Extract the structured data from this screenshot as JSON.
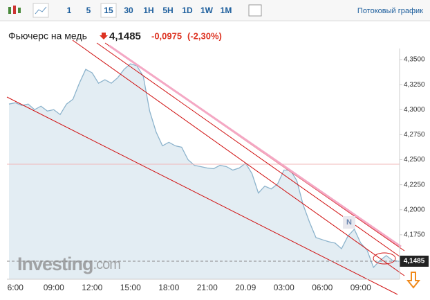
{
  "toolbar": {
    "intervals": [
      "1",
      "5",
      "15",
      "30",
      "1H",
      "5H",
      "1D",
      "1W",
      "1M"
    ],
    "active": "15",
    "streaming": "Потоковый график"
  },
  "header": {
    "title": "Фьючерс на медь",
    "price": "4,1485",
    "change": "-0,0975",
    "change_pct": "(-2,30%)"
  },
  "watermark": {
    "brand": "Investing",
    "suffix": ".com"
  },
  "marker": "N",
  "chart_data": {
    "type": "area",
    "color": "#8cb3cc",
    "fill": "#e3edf3",
    "categories": [
      null,
      "6:00",
      null,
      null,
      null,
      null,
      null,
      "09:00",
      null,
      null,
      null,
      null,
      null,
      "12:00",
      null,
      null,
      null,
      null,
      null,
      "15:00",
      null,
      null,
      null,
      null,
      null,
      "18:00",
      null,
      null,
      null,
      null,
      null,
      "21:00",
      null,
      null,
      null,
      null,
      null,
      "20.09",
      null,
      null,
      null,
      null,
      null,
      "03:00",
      null,
      null,
      null,
      null,
      null,
      "06:00",
      null,
      null,
      null,
      null,
      null,
      "09:00",
      null,
      null,
      null,
      null,
      null,
      null
    ],
    "values": [
      4.3056,
      4.3069,
      4.3042,
      4.3056,
      4.3,
      4.3035,
      4.2986,
      4.3,
      4.2951,
      4.3056,
      4.3104,
      4.3264,
      4.3403,
      4.3368,
      4.3264,
      4.3299,
      4.3264,
      4.3319,
      4.3403,
      4.3458,
      4.3438,
      4.3333,
      4.2986,
      4.2778,
      4.2639,
      4.2674,
      4.2639,
      4.2625,
      4.25,
      4.2444,
      4.2431,
      4.2417,
      4.241,
      4.2444,
      4.2431,
      4.2396,
      4.2417,
      4.2465,
      4.2361,
      4.2167,
      4.2236,
      4.2208,
      4.2257,
      4.2396,
      4.2396,
      4.2292,
      4.2049,
      4.1875,
      4.1722,
      4.1701,
      4.1681,
      4.1667,
      4.1611,
      4.1736,
      4.1806,
      4.1667,
      4.1597,
      4.1424,
      4.1493,
      4.1542,
      4.1493,
      4.1485
    ],
    "ylim": [
      4.1306,
      4.3611
    ],
    "yticks": [
      {
        "value": 4.175,
        "label": "4,1750"
      },
      {
        "value": 4.2,
        "label": "4,2000"
      },
      {
        "value": 4.225,
        "label": "4,2250"
      },
      {
        "value": 4.25,
        "label": "4,2500"
      },
      {
        "value": 4.275,
        "label": "4,2750"
      },
      {
        "value": 4.3,
        "label": "4,3000"
      },
      {
        "value": 4.325,
        "label": "4,3250"
      },
      {
        "value": 4.35,
        "label": "4,3500"
      }
    ],
    "grid": false
  }
}
